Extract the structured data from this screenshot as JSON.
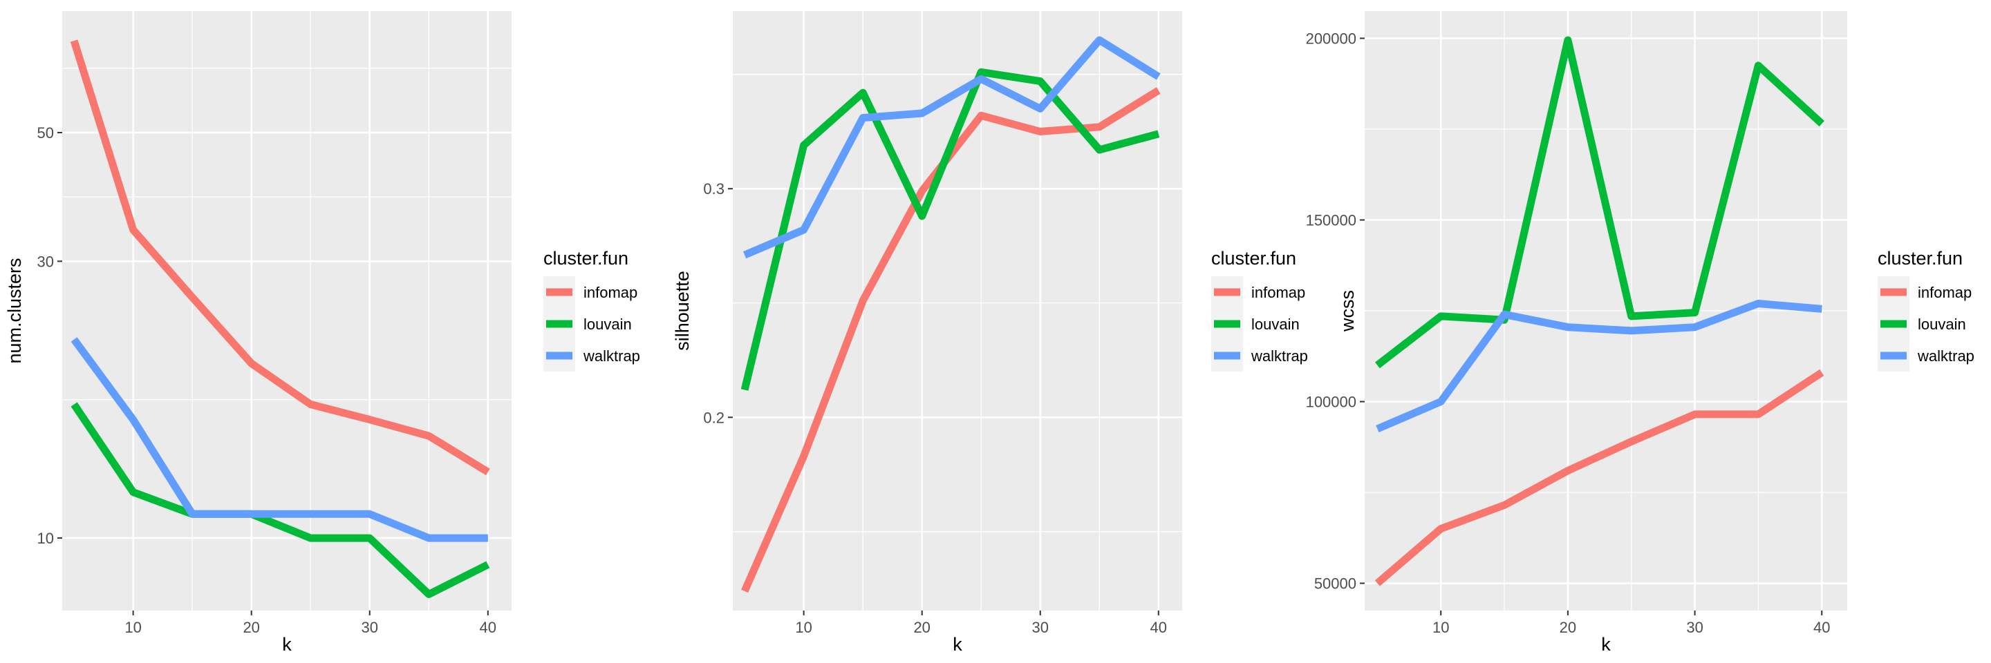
{
  "colors": {
    "infomap": "#F8766D",
    "louvain": "#00BA38",
    "walktrap": "#619CFF"
  },
  "chart_data": [
    {
      "type": "line",
      "xlabel": "k",
      "ylabel": "num.clusters",
      "legend_title": "cluster.fun",
      "legend_position": "right",
      "grid": true,
      "y_scale": "log10",
      "x": [
        5,
        10,
        15,
        20,
        25,
        30,
        35,
        40
      ],
      "xlim": [
        4,
        42
      ],
      "xticks": [
        10,
        20,
        30,
        40
      ],
      "ylim": [
        7.5,
        81
      ],
      "yticks": [
        10,
        30,
        50
      ],
      "series": [
        {
          "name": "infomap",
          "values": [
            72,
            34,
            26,
            20,
            17,
            16,
            15,
            13
          ]
        },
        {
          "name": "louvain",
          "values": [
            17,
            12,
            11,
            11,
            10,
            10,
            8,
            9
          ]
        },
        {
          "name": "walktrap",
          "values": [
            22,
            16,
            11,
            11,
            11,
            11,
            10,
            10
          ]
        }
      ]
    },
    {
      "type": "line",
      "xlabel": "k",
      "ylabel": "silhouette",
      "legend_title": "cluster.fun",
      "legend_position": "right",
      "grid": true,
      "y_scale": "linear",
      "x": [
        5,
        10,
        15,
        20,
        25,
        30,
        35,
        40
      ],
      "xlim": [
        4,
        42
      ],
      "xticks": [
        10,
        20,
        30,
        40
      ],
      "ylim": [
        0.1155,
        0.3777
      ],
      "yticks": [
        0.2,
        0.3
      ],
      "series": [
        {
          "name": "infomap",
          "values": [
            0.124,
            0.183,
            0.251,
            0.299,
            0.332,
            0.325,
            0.327,
            0.343
          ]
        },
        {
          "name": "louvain",
          "values": [
            0.212,
            0.319,
            0.342,
            0.288,
            0.351,
            0.347,
            0.317,
            0.324
          ]
        },
        {
          "name": "walktrap",
          "values": [
            0.271,
            0.282,
            0.331,
            0.333,
            0.348,
            0.335,
            0.365,
            0.349
          ]
        }
      ]
    },
    {
      "type": "line",
      "xlabel": "k",
      "ylabel": "wcss",
      "legend_title": "cluster.fun",
      "legend_position": "right",
      "grid": true,
      "y_scale": "linear",
      "x": [
        5,
        10,
        15,
        20,
        25,
        30,
        35,
        40
      ],
      "xlim": [
        4,
        42
      ],
      "xticks": [
        10,
        20,
        30,
        40
      ],
      "ylim": [
        42500,
        207500
      ],
      "yticks": [
        50000,
        100000,
        150000,
        200000
      ],
      "series": [
        {
          "name": "infomap",
          "values": [
            50000,
            65000,
            71500,
            81000,
            89000,
            96500,
            96500,
            108000
          ]
        },
        {
          "name": "louvain",
          "values": [
            110000,
            123500,
            122500,
            199500,
            123500,
            124500,
            192500,
            176500
          ]
        },
        {
          "name": "walktrap",
          "values": [
            92500,
            100000,
            124000,
            120500,
            119500,
            120500,
            127000,
            125500
          ]
        }
      ]
    }
  ]
}
